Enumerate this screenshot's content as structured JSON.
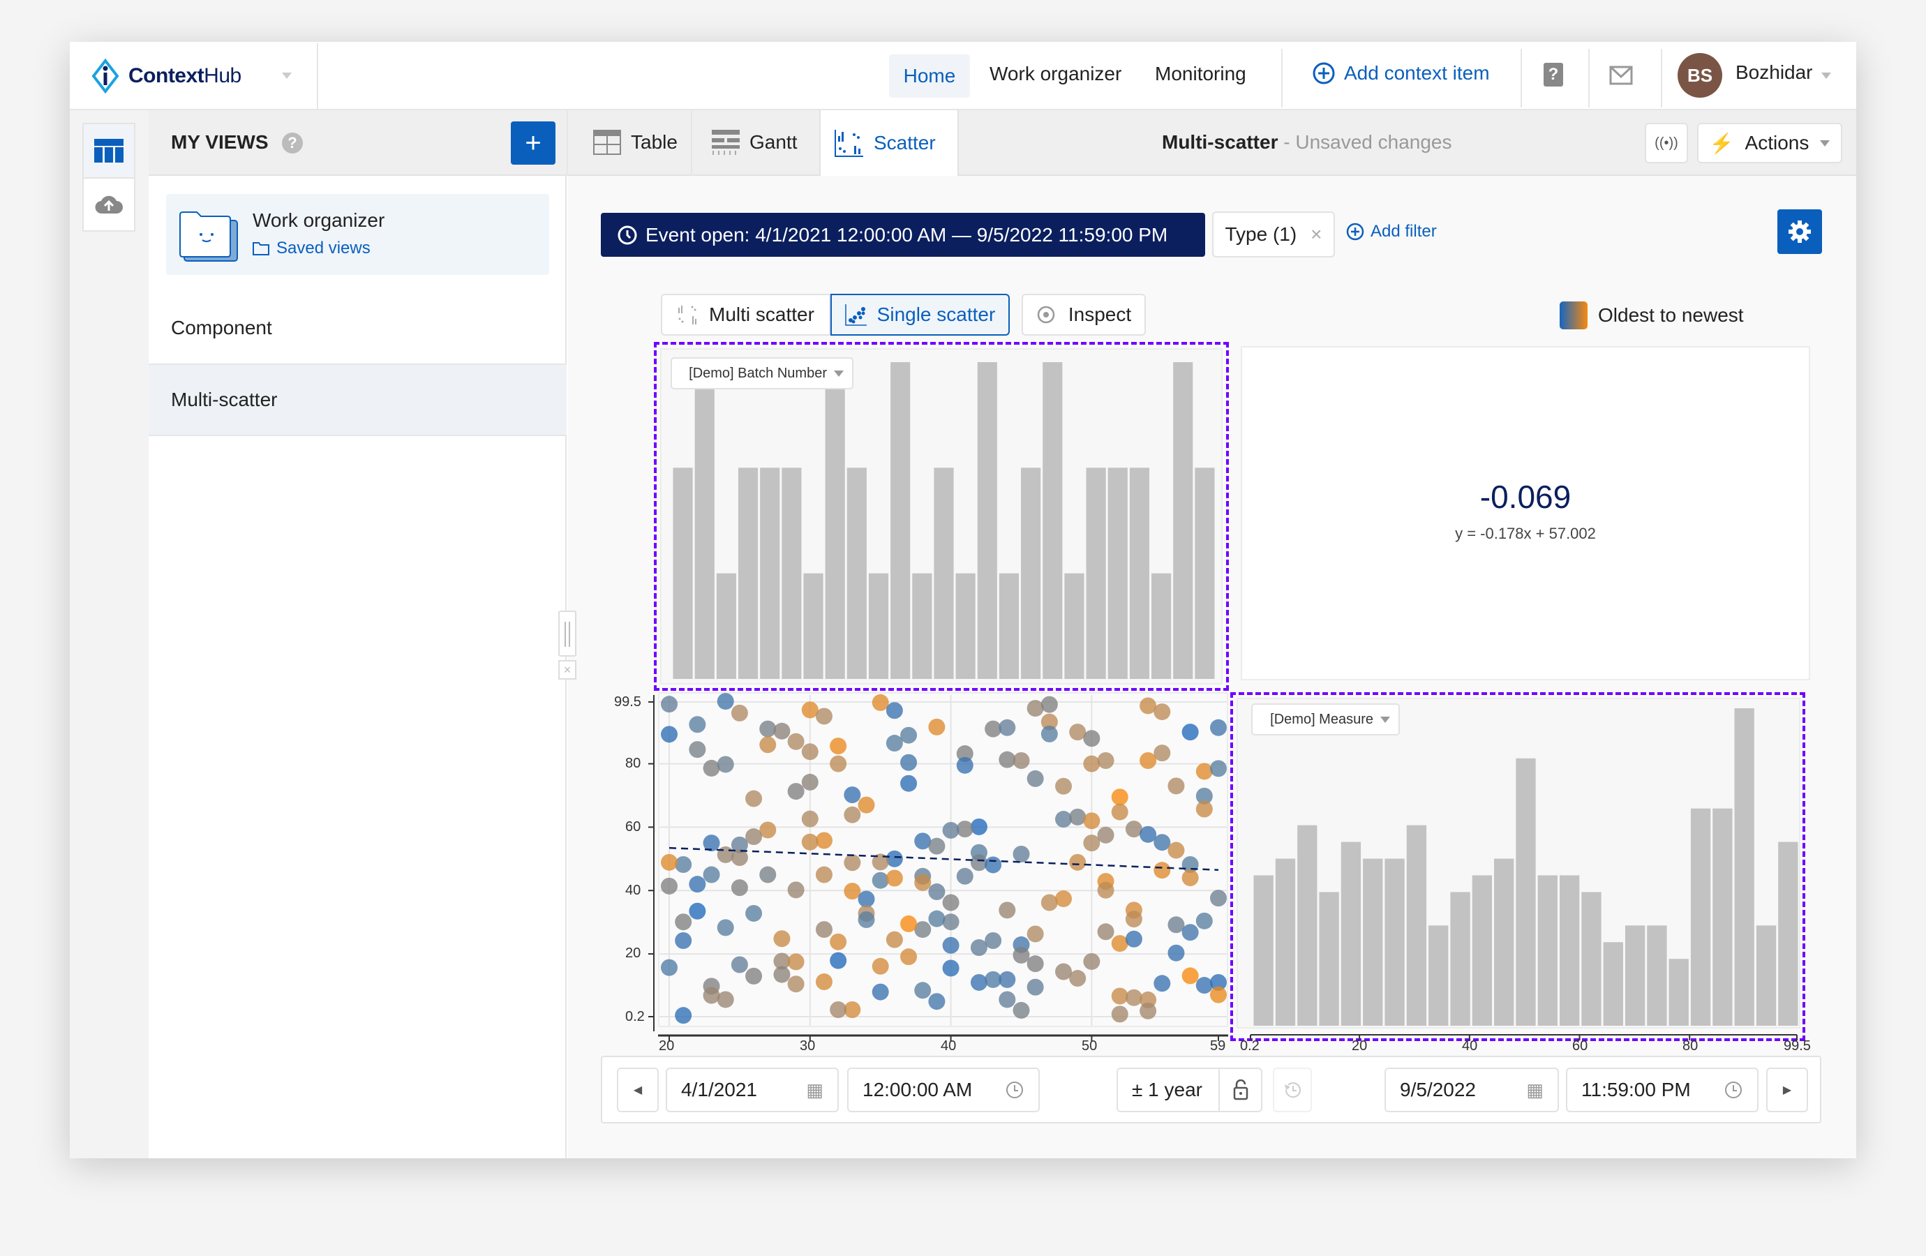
{
  "app": {
    "brand": "ContextHub",
    "brand_bold": "Context",
    "brand_light": "Hub"
  },
  "nav": {
    "items": [
      {
        "label": "Home",
        "active": true
      },
      {
        "label": "Work organizer"
      },
      {
        "label": "Monitoring"
      }
    ],
    "add_context": "Add context item",
    "user": {
      "initials": "BS",
      "name": "Bozhidar",
      "avatar_color": "#7a5545"
    }
  },
  "sidebar": {
    "title": "MY VIEWS",
    "card": {
      "title": "Work organizer",
      "subtitle": "Saved views"
    },
    "items": [
      {
        "label": "Component"
      },
      {
        "label": "Multi-scatter",
        "selected": true
      }
    ]
  },
  "view_tabs": [
    {
      "label": "Table",
      "icon": "table-icon"
    },
    {
      "label": "Gantt",
      "icon": "gantt-icon"
    },
    {
      "label": "Scatter",
      "icon": "scatter-icon",
      "active": true
    }
  ],
  "header": {
    "title": "Multi-scatter",
    "status": " - Unsaved changes",
    "actions": "Actions"
  },
  "filters": {
    "event": "Event open: 4/1/2021 12:00:00 AM — 9/5/2022 11:59:00 PM",
    "type": "Type (1)",
    "add": "Add filter"
  },
  "modes": [
    {
      "label": "Multi scatter"
    },
    {
      "label": "Single scatter",
      "active": true
    },
    {
      "label": "Inspect"
    }
  ],
  "legend": {
    "label": "Oldest to newest",
    "from_color": "#1565c0",
    "to_color": "#f7890f"
  },
  "stats": {
    "correlation": "-0.069",
    "equation": "y = -0.178x + 57.002"
  },
  "time_controls": {
    "start_date": "4/1/2021",
    "start_time": "12:00:00 AM",
    "range": "± 1 year",
    "end_date": "9/5/2022",
    "end_time": "11:59:00 PM"
  },
  "colors": {
    "accent": "#0a5fbd",
    "dark_navy": "#0b1f5e",
    "selection": "#7000ff",
    "bar": "#c2c2c2"
  },
  "chart_data": [
    {
      "type": "scatter",
      "x_ticks": [
        "20",
        "30",
        "40",
        "50",
        "59"
      ],
      "y_ticks": [
        "0.2",
        "20",
        "40",
        "60",
        "80",
        "99.5"
      ],
      "xlim": [
        20,
        59
      ],
      "ylim": [
        0.2,
        99.5
      ],
      "grid": true,
      "color_encoding": "age: 0 = oldest (blue) to 1 = newest (orange)",
      "trendline": {
        "slope": -0.178,
        "intercept": 57.002
      },
      "points": [
        [
          20,
          98.8,
          0.35
        ],
        [
          20,
          89.3,
          0.1
        ],
        [
          24,
          99.7,
          0.2
        ],
        [
          25,
          96,
          0.7
        ],
        [
          22,
          92.4,
          0.3
        ],
        [
          22,
          84.5,
          0.45
        ],
        [
          23,
          78.6,
          0.5
        ],
        [
          24,
          79.8,
          0.4
        ],
        [
          27,
          91,
          0.45
        ],
        [
          28,
          90.3,
          0.55
        ],
        [
          27,
          86,
          0.8
        ],
        [
          29,
          87,
          0.7
        ],
        [
          30,
          97,
          0.9
        ],
        [
          31,
          95,
          0.7
        ],
        [
          30,
          83.8,
          0.7
        ],
        [
          32,
          85.6,
          0.95
        ],
        [
          32,
          80,
          0.75
        ],
        [
          26,
          69,
          0.7
        ],
        [
          29,
          71.3,
          0.5
        ],
        [
          30,
          74.2,
          0.55
        ],
        [
          30,
          62.6,
          0.7
        ],
        [
          33,
          70.2,
          0.15
        ],
        [
          34,
          67,
          0.9
        ],
        [
          33,
          63.9,
          0.7
        ],
        [
          35,
          99.3,
          0.9
        ],
        [
          36,
          96.8,
          0.15
        ],
        [
          36,
          86.5,
          0.3
        ],
        [
          37,
          89,
          0.3
        ],
        [
          39,
          91.6,
          0.9
        ],
        [
          37,
          80.4,
          0.2
        ],
        [
          37,
          73.8,
          0.1
        ],
        [
          41,
          83.2,
          0.5
        ],
        [
          41,
          79.5,
          0.15
        ],
        [
          43,
          91,
          0.5
        ],
        [
          44,
          91.4,
          0.35
        ],
        [
          44,
          81.3,
          0.5
        ],
        [
          45,
          81,
          0.6
        ],
        [
          46,
          97.5,
          0.6
        ],
        [
          47,
          98.7,
          0.5
        ],
        [
          47,
          93.2,
          0.75
        ],
        [
          47,
          89.4,
          0.3
        ],
        [
          46,
          75.3,
          0.4
        ],
        [
          48,
          72.9,
          0.7
        ],
        [
          49,
          90,
          0.7
        ],
        [
          50,
          88,
          0.5
        ],
        [
          50,
          80,
          0.75
        ],
        [
          51,
          81,
          0.7
        ],
        [
          54,
          98.3,
          0.8
        ],
        [
          55,
          96.4,
          0.75
        ],
        [
          55,
          83.4,
          0.7
        ],
        [
          54,
          81,
          0.9
        ],
        [
          57,
          90,
          0.05
        ],
        [
          59,
          91.4,
          0.2
        ],
        [
          58,
          77.6,
          0.9
        ],
        [
          59,
          78.5,
          0.3
        ],
        [
          56,
          73,
          0.7
        ],
        [
          52,
          69.5,
          1
        ],
        [
          52,
          64.8,
          0.8
        ],
        [
          48,
          62.5,
          0.35
        ],
        [
          49,
          63.2,
          0.45
        ],
        [
          50,
          62,
          0.85
        ],
        [
          50,
          55,
          0.7
        ],
        [
          51,
          57.5,
          0.6
        ],
        [
          53,
          59.4,
          0.6
        ],
        [
          54,
          57.7,
          0.15
        ],
        [
          55,
          55.2,
          0.2
        ],
        [
          56,
          52.7,
          0.8
        ],
        [
          58,
          69.8,
          0.3
        ],
        [
          58,
          65.7,
          0.8
        ],
        [
          57,
          48.2,
          0.3
        ],
        [
          55,
          46.4,
          0.9
        ],
        [
          57,
          44,
          0.85
        ],
        [
          49,
          48.9,
          0.8
        ],
        [
          51,
          42.9,
          0.9
        ],
        [
          51,
          40.1,
          0.75
        ],
        [
          45,
          51.5,
          0.35
        ],
        [
          42,
          60.1,
          0.05
        ],
        [
          41,
          59.4,
          0.5
        ],
        [
          40,
          59,
          0.35
        ],
        [
          38,
          55.6,
          0.15
        ],
        [
          39,
          54,
          0.45
        ],
        [
          42,
          52,
          0.3
        ],
        [
          42,
          48.8,
          0.45
        ],
        [
          43,
          48.1,
          0.15
        ],
        [
          41,
          44.5,
          0.35
        ],
        [
          36,
          50,
          0.1
        ],
        [
          35,
          49,
          0.7
        ],
        [
          33,
          48.8,
          0.7
        ],
        [
          35,
          43.2,
          0.3
        ],
        [
          36,
          43.9,
          0.9
        ],
        [
          38,
          44.5,
          0.35
        ],
        [
          38,
          42.5,
          0.8
        ],
        [
          39,
          39.6,
          0.35
        ],
        [
          40,
          36.2,
          0.5
        ],
        [
          40,
          30.1,
          0.4
        ],
        [
          39,
          31.1,
          0.3
        ],
        [
          38,
          27.7,
          0.45
        ],
        [
          37,
          29.5,
          1
        ],
        [
          36,
          24.5,
          0.8
        ],
        [
          37,
          19.1,
          0.85
        ],
        [
          35,
          16.1,
          0.85
        ],
        [
          35,
          8,
          0.15
        ],
        [
          38,
          8.5,
          0.3
        ],
        [
          39,
          5,
          0.2
        ],
        [
          40,
          22.7,
          0.15
        ],
        [
          40,
          15.5,
          0.1
        ],
        [
          42,
          22,
          0.35
        ],
        [
          43,
          24.2,
          0.35
        ],
        [
          42,
          11,
          0.15
        ],
        [
          43,
          11.9,
          0.25
        ],
        [
          44,
          11.9,
          0.2
        ],
        [
          44,
          5.6,
          0.35
        ],
        [
          45,
          2.2,
          0.45
        ],
        [
          45,
          22.9,
          0.2
        ],
        [
          45,
          19.6,
          0.5
        ],
        [
          46,
          16.9,
          0.5
        ],
        [
          46,
          9.5,
          0.35
        ],
        [
          46,
          26.3,
          0.7
        ],
        [
          44,
          33.8,
          0.6
        ],
        [
          47,
          36.2,
          0.75
        ],
        [
          48,
          37.4,
          0.85
        ],
        [
          48,
          14.4,
          0.6
        ],
        [
          49,
          12.3,
          0.65
        ],
        [
          50,
          17.6,
          0.6
        ],
        [
          51,
          27,
          0.6
        ],
        [
          52,
          23.3,
          0.9
        ],
        [
          53,
          33.8,
          0.85
        ],
        [
          53,
          31,
          0.75
        ],
        [
          53,
          24.7,
          0.15
        ],
        [
          56,
          29.2,
          0.4
        ],
        [
          57,
          26.8,
          0.2
        ],
        [
          58,
          30.4,
          0.3
        ],
        [
          59,
          37.6,
          0.4
        ],
        [
          56,
          20.3,
          0.15
        ],
        [
          55,
          10.7,
          0.15
        ],
        [
          57,
          13.1,
          1
        ],
        [
          58,
          10.1,
          0.15
        ],
        [
          59,
          11,
          0.1
        ],
        [
          59,
          7.1,
          0.95
        ],
        [
          52,
          6.7,
          0.8
        ],
        [
          53,
          6.2,
          0.7
        ],
        [
          54,
          5.5,
          0.75
        ],
        [
          54,
          2,
          0.65
        ],
        [
          52,
          1,
          0.65
        ],
        [
          33,
          2.4,
          0.85
        ],
        [
          32,
          2.4,
          0.65
        ],
        [
          32,
          17.9,
          0.05
        ],
        [
          32,
          23.8,
          0.85
        ],
        [
          31,
          27.7,
          0.6
        ],
        [
          31,
          45,
          0.75
        ],
        [
          31,
          55.8,
          0.9
        ],
        [
          30,
          55.3,
          0.8
        ],
        [
          29,
          40.2,
          0.6
        ],
        [
          33,
          39.8,
          0.9
        ],
        [
          34,
          37.3,
          0.15
        ],
        [
          34,
          32.8,
          0.7
        ],
        [
          34,
          30.8,
          0.3
        ],
        [
          28,
          24.8,
          0.8
        ],
        [
          28,
          17.7,
          0.6
        ],
        [
          29,
          17.5,
          0.8
        ],
        [
          28,
          13.5,
          0.55
        ],
        [
          29,
          10.5,
          0.7
        ],
        [
          31,
          11.2,
          0.85
        ],
        [
          27,
          45,
          0.45
        ],
        [
          27,
          59.1,
          0.8
        ],
        [
          26,
          57,
          0.6
        ],
        [
          25,
          54.4,
          0.35
        ],
        [
          24,
          51.3,
          0.6
        ],
        [
          25,
          50.4,
          0.6
        ],
        [
          23,
          55,
          0.15
        ],
        [
          23,
          45,
          0.3
        ],
        [
          22,
          42,
          0.15
        ],
        [
          21,
          48.2,
          0.3
        ],
        [
          20,
          48.9,
          0.9
        ],
        [
          20,
          41.4,
          0.5
        ],
        [
          25,
          40.9,
          0.5
        ],
        [
          22,
          33.5,
          0.05
        ],
        [
          21,
          30.1,
          0.5
        ],
        [
          21,
          24.2,
          0.15
        ],
        [
          26,
          32.8,
          0.3
        ],
        [
          24,
          28.3,
          0.3
        ],
        [
          20,
          15.7,
          0.25
        ],
        [
          25,
          16.6,
          0.35
        ],
        [
          26,
          13,
          0.5
        ],
        [
          23,
          9.8,
          0.5
        ],
        [
          23,
          6.9,
          0.6
        ],
        [
          24,
          5.6,
          0.6
        ],
        [
          21,
          0.6,
          0.1
        ]
      ]
    },
    {
      "type": "bar",
      "selector": "[Demo] Batch Number",
      "xlim": [
        20,
        59
      ],
      "values": [
        10,
        15,
        5,
        10,
        10,
        10,
        5,
        15,
        10,
        5,
        15,
        5,
        10,
        5,
        15,
        5,
        10,
        15,
        5,
        10,
        10,
        10,
        5,
        15,
        10
      ]
    },
    {
      "type": "bar",
      "selector": "[Demo] Measure",
      "orientation": "vertical",
      "x_ticks": [
        "0.2",
        "20",
        "40",
        "60",
        "80",
        "99.5"
      ],
      "xlim": [
        0.2,
        99.5
      ],
      "values": [
        9,
        10,
        12,
        8,
        11,
        10,
        10,
        12,
        6,
        8,
        9,
        10,
        16,
        9,
        9,
        8,
        5,
        6,
        6,
        4,
        13,
        13,
        19,
        6,
        11
      ]
    }
  ]
}
